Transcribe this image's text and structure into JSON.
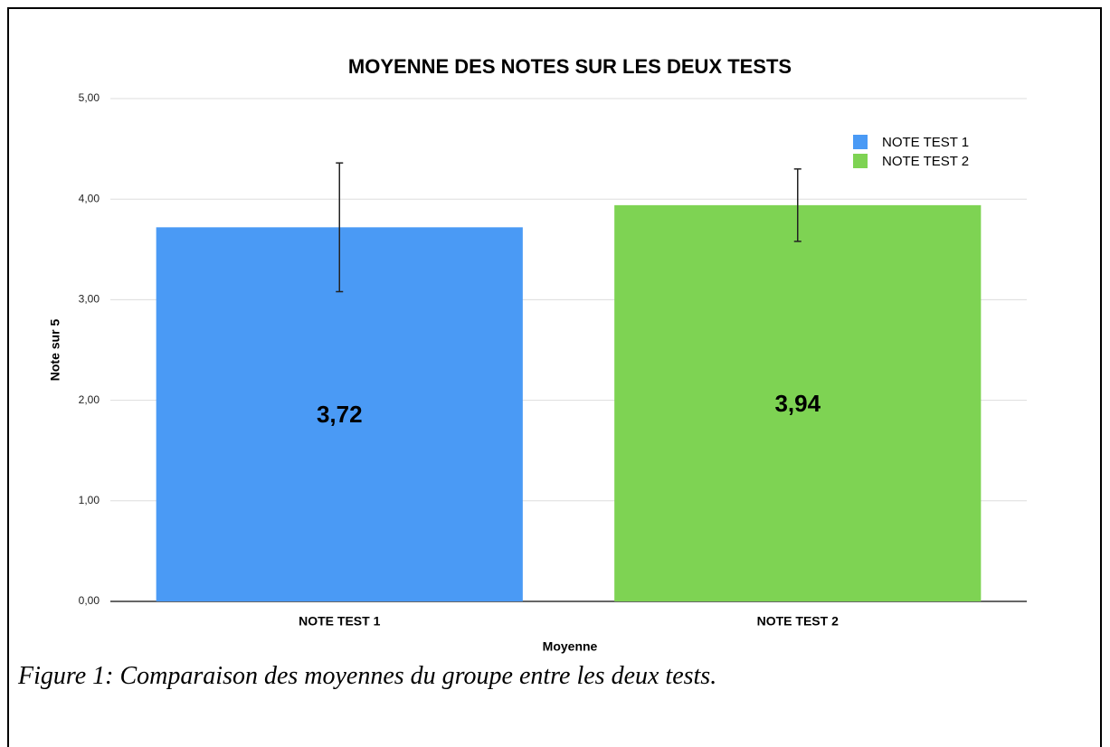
{
  "chart_data": {
    "type": "bar",
    "title": "MOYENNE DES NOTES SUR LES DEUX TESTS",
    "x_label": "Moyenne",
    "y_label": "Note sur 5",
    "categories": [
      "NOTE TEST 1",
      "NOTE TEST 2"
    ],
    "values": [
      3.72,
      3.94
    ],
    "value_labels": [
      "3,72",
      "3,94"
    ],
    "errors": [
      0.64,
      0.36
    ],
    "colors": [
      "#4a9af5",
      "#7ed353"
    ],
    "ylim": [
      0,
      5
    ],
    "yticks": [
      {
        "value": 0,
        "label": "0,00"
      },
      {
        "value": 1,
        "label": "1,00"
      },
      {
        "value": 2,
        "label": "2,00"
      },
      {
        "value": 3,
        "label": "3,00"
      },
      {
        "value": 4,
        "label": "4,00"
      },
      {
        "value": 5,
        "label": "5,00"
      }
    ],
    "grid": true,
    "legend": "top-right"
  },
  "caption": "Figure 1: Comparaison des moyennes du groupe entre les deux tests."
}
